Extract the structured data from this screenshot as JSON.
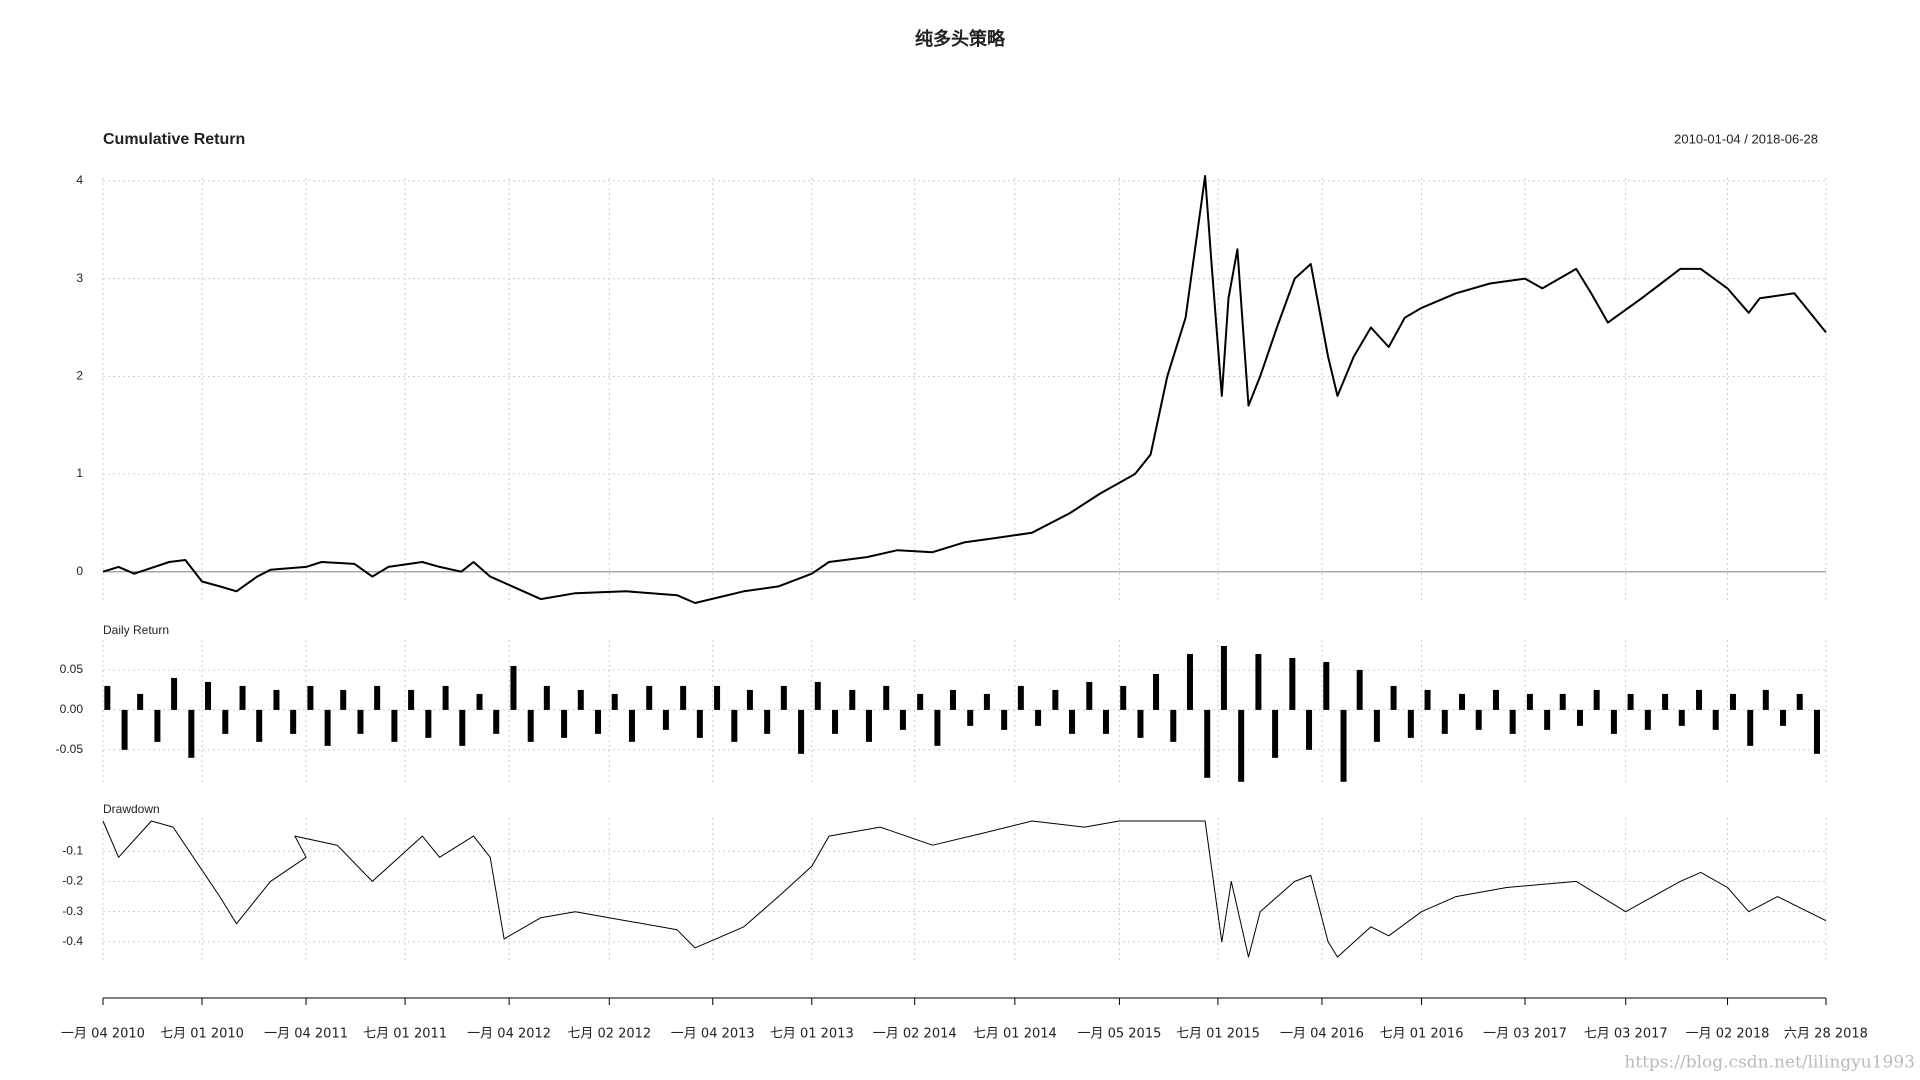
{
  "title": "纯多头策略",
  "watermark": "https://blog.csdn.net/lilingyu1993",
  "chart_data": [
    {
      "type": "line",
      "title": "Cumulative Return",
      "subtitle": "2010-01-04 / 2018-06-28",
      "x": [
        "2010-01-04",
        "2010-02-01",
        "2010-03-01",
        "2010-05-03",
        "2010-06-01",
        "2010-07-01",
        "2010-08-02",
        "2010-09-01",
        "2010-10-08",
        "2010-11-01",
        "2011-01-04",
        "2011-02-01",
        "2011-04-01",
        "2011-05-03",
        "2011-06-01",
        "2011-08-01",
        "2011-09-01",
        "2011-10-10",
        "2011-11-01",
        "2011-12-01",
        "2012-03-01",
        "2012-05-02",
        "2012-08-01",
        "2012-11-01",
        "2012-12-03",
        "2013-03-01",
        "2013-05-02",
        "2013-07-01",
        "2013-08-01",
        "2013-10-08",
        "2013-12-02",
        "2014-02-03",
        "2014-04-01",
        "2014-06-03",
        "2014-08-01",
        "2014-10-08",
        "2014-12-01",
        "2015-02-02",
        "2015-03-02",
        "2015-04-01",
        "2015-05-04",
        "2015-06-08",
        "2015-06-19",
        "2015-07-08",
        "2015-07-20",
        "2015-08-05",
        "2015-08-25",
        "2015-09-15",
        "2015-10-15",
        "2015-11-16",
        "2015-12-15",
        "2016-01-15",
        "2016-02-01",
        "2016-03-01",
        "2016-04-01",
        "2016-05-03",
        "2016-06-01",
        "2016-07-01",
        "2016-09-01",
        "2016-11-01",
        "2017-01-03",
        "2017-02-03",
        "2017-04-05",
        "2017-05-02",
        "2017-06-01",
        "2017-08-01",
        "2017-10-09",
        "2017-11-15",
        "2018-01-02",
        "2018-02-09",
        "2018-03-01",
        "2018-05-02",
        "2018-06-28"
      ],
      "values": [
        0,
        0.05,
        -0.02,
        0.1,
        0.12,
        -0.1,
        -0.15,
        -0.2,
        -0.05,
        0.02,
        0.05,
        0.1,
        0.08,
        -0.05,
        0.05,
        0.1,
        0.05,
        0.0,
        0.1,
        -0.05,
        -0.28,
        -0.22,
        -0.2,
        -0.24,
        -0.32,
        -0.2,
        -0.15,
        -0.02,
        0.1,
        0.15,
        0.22,
        0.2,
        0.3,
        0.35,
        0.4,
        0.6,
        0.8,
        1.0,
        1.2,
        2.0,
        2.6,
        4.05,
        3.2,
        1.8,
        2.8,
        3.3,
        1.7,
        2.0,
        2.5,
        3.0,
        3.15,
        2.2,
        1.8,
        2.2,
        2.5,
        2.3,
        2.6,
        2.7,
        2.85,
        2.95,
        3.0,
        2.9,
        3.1,
        2.85,
        2.55,
        2.8,
        3.1,
        3.1,
        2.9,
        2.65,
        2.8,
        2.85,
        2.45
      ],
      "color": "#000000",
      "xlim": [
        "2010-01-04",
        "2018-06-28"
      ],
      "ylim": [
        -0.32,
        4.03
      ],
      "yticks": [
        0,
        1,
        2,
        3,
        4
      ],
      "grid": true
    },
    {
      "type": "bar",
      "title": "Daily Return",
      "x": [
        "2010-01",
        "2010-02",
        "2010-03",
        "2010-04",
        "2010-05",
        "2010-06",
        "2010-07",
        "2010-08",
        "2010-09",
        "2010-10",
        "2010-11",
        "2010-12",
        "2011-01",
        "2011-02",
        "2011-03",
        "2011-04",
        "2011-05",
        "2011-06",
        "2011-07",
        "2011-08",
        "2011-09",
        "2011-10",
        "2011-11",
        "2011-12",
        "2012-01",
        "2012-02",
        "2012-03",
        "2012-04",
        "2012-05",
        "2012-06",
        "2012-07",
        "2012-08",
        "2012-09",
        "2012-10",
        "2012-11",
        "2012-12",
        "2013-01",
        "2013-02",
        "2013-03",
        "2013-04",
        "2013-05",
        "2013-06",
        "2013-07",
        "2013-08",
        "2013-09",
        "2013-10",
        "2013-11",
        "2013-12",
        "2014-01",
        "2014-02",
        "2014-03",
        "2014-04",
        "2014-05",
        "2014-06",
        "2014-07",
        "2014-08",
        "2014-09",
        "2014-10",
        "2014-11",
        "2014-12",
        "2015-01",
        "2015-02",
        "2015-03",
        "2015-04",
        "2015-05",
        "2015-06",
        "2015-07",
        "2015-08",
        "2015-09",
        "2015-10",
        "2015-11",
        "2015-12",
        "2016-01",
        "2016-02",
        "2016-03",
        "2016-04",
        "2016-05",
        "2016-06",
        "2016-07",
        "2016-08",
        "2016-09",
        "2016-10",
        "2016-11",
        "2016-12",
        "2017-01",
        "2017-02",
        "2017-03",
        "2017-04",
        "2017-05",
        "2017-06",
        "2017-07",
        "2017-08",
        "2017-09",
        "2017-10",
        "2017-11",
        "2017-12",
        "2018-01",
        "2018-02",
        "2018-03",
        "2018-04",
        "2018-05",
        "2018-06"
      ],
      "values": [
        0.03,
        -0.05,
        0.02,
        -0.04,
        0.04,
        -0.06,
        0.035,
        -0.03,
        0.03,
        -0.04,
        0.025,
        -0.03,
        0.03,
        -0.045,
        0.025,
        -0.03,
        0.03,
        -0.04,
        0.025,
        -0.035,
        0.03,
        -0.045,
        0.02,
        -0.03,
        0.055,
        -0.04,
        0.03,
        -0.035,
        0.025,
        -0.03,
        0.02,
        -0.04,
        0.03,
        -0.025,
        0.03,
        -0.035,
        0.03,
        -0.04,
        0.025,
        -0.03,
        0.03,
        -0.055,
        0.035,
        -0.03,
        0.025,
        -0.04,
        0.03,
        -0.025,
        0.02,
        -0.045,
        0.025,
        -0.02,
        0.02,
        -0.025,
        0.03,
        -0.02,
        0.025,
        -0.03,
        0.035,
        -0.03,
        0.03,
        -0.035,
        0.045,
        -0.04,
        0.07,
        -0.085,
        0.08,
        -0.09,
        0.07,
        -0.06,
        0.065,
        -0.05,
        0.06,
        -0.09,
        0.05,
        -0.04,
        0.03,
        -0.035,
        0.025,
        -0.03,
        0.02,
        -0.025,
        0.025,
        -0.03,
        0.02,
        -0.025,
        0.02,
        -0.02,
        0.025,
        -0.03,
        0.02,
        -0.025,
        0.02,
        -0.02,
        0.025,
        -0.025,
        0.02,
        -0.045,
        0.025,
        -0.02,
        0.02,
        -0.055
      ],
      "color": "#000000",
      "xlim": [
        "2010-01-04",
        "2018-06-28"
      ],
      "ylim": [
        -0.094,
        0.0875
      ],
      "yticks": [
        -0.05,
        {
          "value": 0,
          "label": "0.00"
        },
        0.05
      ],
      "grid": true
    },
    {
      "type": "line",
      "title": "Drawdown",
      "x": [
        "2010-01-04",
        "2010-02-01",
        "2010-04-01",
        "2010-05-10",
        "2010-08-02",
        "2010-09-01",
        "2010-11-01",
        "2011-01-04",
        "2010-12-15",
        "2011-03-01",
        "2011-05-03",
        "2011-08-01",
        "2011-09-01",
        "2011-11-01",
        "2011-12-01",
        "2011-12-26",
        "2012-03-01",
        "2012-05-02",
        "2012-08-01",
        "2012-11-01",
        "2012-12-03",
        "2013-03-01",
        "2013-05-02",
        "2013-07-01",
        "2013-08-01",
        "2013-11-01",
        "2014-02-03",
        "2014-05-05",
        "2014-08-01",
        "2014-11-03",
        "2015-01-05",
        "2015-06-08",
        "2015-07-08",
        "2015-07-25",
        "2015-08-25",
        "2015-09-15",
        "2015-11-16",
        "2015-12-15",
        "2016-01-15",
        "2016-02-01",
        "2016-04-01",
        "2016-05-03",
        "2016-07-01",
        "2016-09-01",
        "2016-12-01",
        "2017-04-05",
        "2017-07-03",
        "2017-10-09",
        "2017-11-15",
        "2018-01-02",
        "2018-02-09",
        "2018-04-02",
        "2018-06-28"
      ],
      "values": [
        0,
        -0.12,
        0,
        -0.02,
        -0.25,
        -0.34,
        -0.2,
        -0.12,
        -0.05,
        -0.08,
        -0.2,
        -0.05,
        -0.12,
        -0.05,
        -0.12,
        -0.39,
        -0.32,
        -0.3,
        -0.33,
        -0.36,
        -0.42,
        -0.35,
        -0.25,
        -0.15,
        -0.05,
        -0.02,
        -0.08,
        -0.04,
        0,
        -0.02,
        0,
        0,
        -0.4,
        -0.2,
        -0.45,
        -0.3,
        -0.2,
        -0.18,
        -0.4,
        -0.45,
        -0.35,
        -0.38,
        -0.3,
        -0.25,
        -0.22,
        -0.2,
        -0.3,
        -0.2,
        -0.17,
        -0.22,
        -0.3,
        -0.25,
        -0.33
      ],
      "color": "#000000",
      "xlim": [
        "2010-01-04",
        "2018-06-28"
      ],
      "ylim": [
        -0.46,
        0.01
      ],
      "yticks": [
        -0.1,
        -0.2,
        -0.3,
        -0.4
      ],
      "grid": true,
      "xticks": [
        {
          "value": "2010-01-04",
          "label": "一月 04 2010"
        },
        {
          "value": "2010-07-01",
          "label": "七月 01 2010"
        },
        {
          "value": "2011-01-04",
          "label": "一月 04 2011"
        },
        {
          "value": "2011-07-01",
          "label": "七月 01 2011"
        },
        {
          "value": "2012-01-04",
          "label": "一月 04 2012"
        },
        {
          "value": "2012-07-02",
          "label": "七月 02 2012"
        },
        {
          "value": "2013-01-04",
          "label": "一月 04 2013"
        },
        {
          "value": "2013-07-01",
          "label": "七月 01 2013"
        },
        {
          "value": "2014-01-02",
          "label": "一月 02 2014"
        },
        {
          "value": "2014-07-01",
          "label": "七月 01 2014"
        },
        {
          "value": "2015-01-05",
          "label": "一月 05 2015"
        },
        {
          "value": "2015-07-01",
          "label": "七月 01 2015"
        },
        {
          "value": "2016-01-04",
          "label": "一月 04 2016"
        },
        {
          "value": "2016-07-01",
          "label": "七月 01 2016"
        },
        {
          "value": "2017-01-03",
          "label": "一月 03 2017"
        },
        {
          "value": "2017-07-03",
          "label": "七月 03 2017"
        },
        {
          "value": "2018-01-02",
          "label": "一月 02 2018"
        },
        {
          "value": "2018-06-28",
          "label": "六月 28 2018"
        }
      ]
    }
  ]
}
